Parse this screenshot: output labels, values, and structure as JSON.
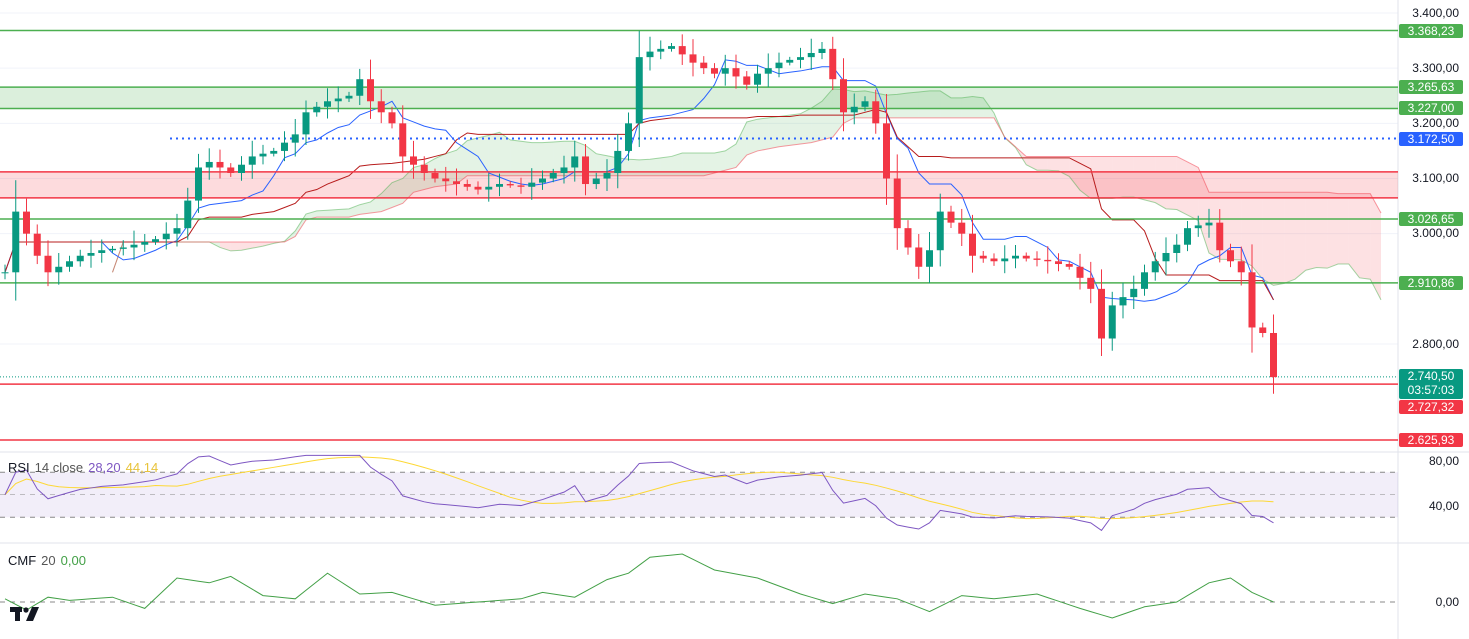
{
  "chart_data": {
    "type": "candlestick",
    "price_axis": {
      "ticks": [
        3400,
        3300,
        3200,
        3100,
        3000,
        2800
      ],
      "tick_labels": [
        "3.400,00",
        "3.300,00",
        "3.200,00",
        "3.100,00",
        "3.000,00",
        "2.800,00"
      ],
      "range": [
        2600,
        3420
      ]
    },
    "close_keypoints": [
      [
        0,
        2930
      ],
      [
        1,
        3040
      ],
      [
        3,
        2960
      ],
      [
        4,
        2930
      ],
      [
        7,
        2960
      ],
      [
        9,
        2970
      ],
      [
        11,
        2975
      ],
      [
        14,
        2990
      ],
      [
        16,
        3010
      ],
      [
        17,
        3060
      ],
      [
        18,
        3120
      ],
      [
        19,
        3130
      ],
      [
        21,
        3110
      ],
      [
        23,
        3140
      ],
      [
        25,
        3150
      ],
      [
        27,
        3180
      ],
      [
        28,
        3220
      ],
      [
        30,
        3240
      ],
      [
        32,
        3250
      ],
      [
        33,
        3280
      ],
      [
        34,
        3240
      ],
      [
        36,
        3200
      ],
      [
        37,
        3140
      ],
      [
        39,
        3110
      ],
      [
        40,
        3100
      ],
      [
        42,
        3090
      ],
      [
        44,
        3080
      ],
      [
        46,
        3090
      ],
      [
        48,
        3085
      ],
      [
        50,
        3100
      ],
      [
        52,
        3120
      ],
      [
        53,
        3140
      ],
      [
        54,
        3090
      ],
      [
        56,
        3110
      ],
      [
        57,
        3150
      ],
      [
        58,
        3200
      ],
      [
        59,
        3320
      ],
      [
        60,
        3330
      ],
      [
        62,
        3340
      ],
      [
        64,
        3310
      ],
      [
        66,
        3290
      ],
      [
        67,
        3300
      ],
      [
        69,
        3270
      ],
      [
        70,
        3290
      ],
      [
        72,
        3310
      ],
      [
        74,
        3320
      ],
      [
        76,
        3335
      ],
      [
        77,
        3280
      ],
      [
        78,
        3220
      ],
      [
        80,
        3240
      ],
      [
        81,
        3200
      ],
      [
        82,
        3100
      ],
      [
        83,
        3010
      ],
      [
        85,
        2940
      ],
      [
        86,
        2970
      ],
      [
        87,
        3040
      ],
      [
        89,
        3000
      ],
      [
        90,
        2960
      ],
      [
        92,
        2950
      ],
      [
        94,
        2960
      ],
      [
        95,
        2955
      ],
      [
        97,
        2950
      ],
      [
        99,
        2940
      ],
      [
        101,
        2900
      ],
      [
        102,
        2810
      ],
      [
        103,
        2870
      ],
      [
        105,
        2900
      ],
      [
        106,
        2930
      ],
      [
        107,
        2950
      ],
      [
        109,
        2980
      ],
      [
        110,
        3010
      ],
      [
        112,
        3020
      ],
      [
        113,
        2970
      ],
      [
        115,
        2930
      ],
      [
        116,
        2830
      ],
      [
        117,
        2820
      ],
      [
        118,
        2740
      ]
    ],
    "levels": [
      {
        "price": 3368.23,
        "label": "3.368,23",
        "color": "#4caf50"
      },
      {
        "price": 3265.63,
        "label": "3.265,63",
        "color": "#4caf50"
      },
      {
        "price": 3227.0,
        "label": "3.227,00",
        "color": "#4caf50"
      },
      {
        "price": 3172.5,
        "label": "3.172,50",
        "color": "#2962ff",
        "dotted": true
      },
      {
        "price": 3026.65,
        "label": "3.026,65",
        "color": "#4caf50"
      },
      {
        "price": 2910.86,
        "label": "2.910,86",
        "color": "#4caf50"
      },
      {
        "price": 2727.32,
        "label": "2.727,32",
        "color": "#f23645"
      },
      {
        "price": 2625.93,
        "label": "2.625,93",
        "color": "#f23645"
      }
    ],
    "red_zone": [
      3065,
      3112
    ],
    "last_price": {
      "price": 2740.5,
      "label": "2.740,50",
      "countdown": "03:57:03",
      "color": "#089981"
    },
    "rsi": {
      "name": "RSI",
      "params": "14 close",
      "value": "28,20",
      "ma_value": "44,14",
      "ticks": [
        "80,00",
        "40,00"
      ],
      "bands": [
        70,
        50,
        30
      ]
    },
    "cmf": {
      "name": "CMF",
      "params": "20",
      "value": "0,00",
      "ticks": [
        "0,00"
      ],
      "keypoints": [
        [
          0,
          0.02
        ],
        [
          2,
          -0.05
        ],
        [
          4,
          0.03
        ],
        [
          6,
          0.01
        ],
        [
          10,
          0.03
        ],
        [
          13,
          -0.04
        ],
        [
          16,
          0.15
        ],
        [
          19,
          0.12
        ],
        [
          21,
          0.16
        ],
        [
          24,
          0.04
        ],
        [
          27,
          0.02
        ],
        [
          30,
          0.18
        ],
        [
          33,
          0.05
        ],
        [
          36,
          0.06
        ],
        [
          40,
          -0.02
        ],
        [
          44,
          0.0
        ],
        [
          48,
          0.02
        ],
        [
          50,
          0.06
        ],
        [
          53,
          0.03
        ],
        [
          56,
          0.14
        ],
        [
          58,
          0.18
        ],
        [
          60,
          0.28
        ],
        [
          63,
          0.3
        ],
        [
          66,
          0.2
        ],
        [
          70,
          0.15
        ],
        [
          74,
          0.05
        ],
        [
          77,
          -0.01
        ],
        [
          80,
          0.05
        ],
        [
          83,
          0.02
        ],
        [
          86,
          -0.06
        ],
        [
          89,
          0.04
        ],
        [
          92,
          0.02
        ],
        [
          96,
          0.05
        ],
        [
          100,
          -0.04
        ],
        [
          103,
          -0.1
        ],
        [
          106,
          -0.03
        ],
        [
          109,
          0.0
        ],
        [
          112,
          0.12
        ],
        [
          114,
          0.15
        ],
        [
          116,
          0.06
        ],
        [
          118,
          0.0
        ]
      ]
    },
    "colors": {
      "up": "#089981",
      "down": "#f23645",
      "tenkan": "#2962ff",
      "kijun": "#b71c1c",
      "rsi": "#7e57c2",
      "rsi_ma": "#fdd835",
      "cmf": "#43a047"
    }
  }
}
